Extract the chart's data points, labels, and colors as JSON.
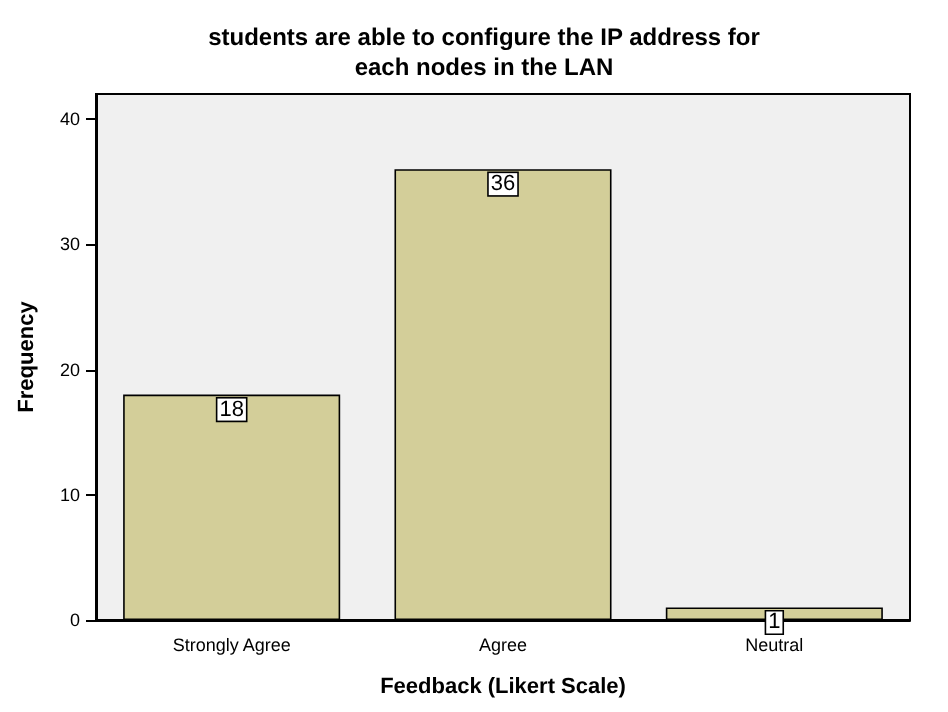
{
  "chart_data": {
    "type": "bar",
    "title": "students are able to configure the IP address for\neach nodes in the LAN",
    "xlabel": "Feedback (Likert Scale)",
    "ylabel": "Frequency",
    "categories": [
      "Strongly Agree",
      "Agree",
      "Neutral"
    ],
    "values": [
      18,
      36,
      1
    ],
    "color": "#d3ce99",
    "ylim": [
      0,
      42
    ],
    "yticks": [
      0,
      10,
      20,
      30,
      40
    ],
    "grid": false,
    "data_labels": true
  }
}
